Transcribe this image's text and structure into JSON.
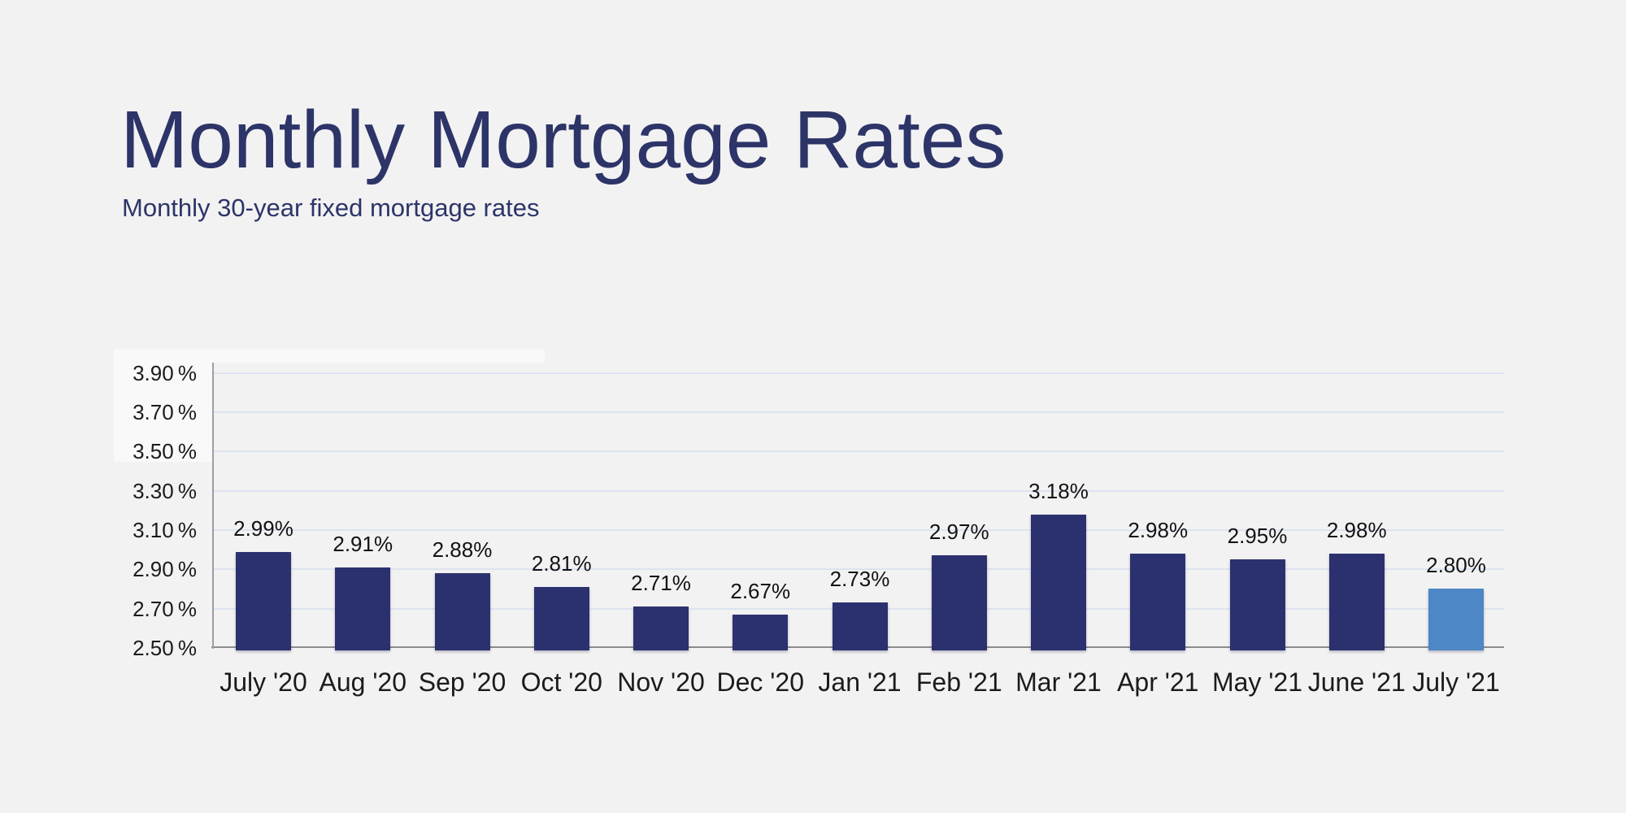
{
  "page": {
    "background": "#f2f2f3"
  },
  "header": {
    "title": "Monthly Mortgage Rates",
    "subtitle": "Monthly 30-year fixed mortgage rates"
  },
  "chart_data": {
    "type": "bar",
    "title": "Monthly Mortgage Rates",
    "subtitle": "Monthly 30-year fixed mortgage rates",
    "categories": [
      "July '20",
      "Aug '20",
      "Sep '20",
      "Oct '20",
      "Nov '20",
      "Dec '20",
      "Jan '21",
      "Feb '21",
      "Mar '21",
      "Apr '21",
      "May '21",
      "June '21",
      "July '21"
    ],
    "values": [
      2.99,
      2.91,
      2.88,
      2.81,
      2.71,
      2.67,
      2.73,
      2.97,
      3.18,
      2.98,
      2.95,
      2.98,
      2.8
    ],
    "value_labels": [
      "2.99%",
      "2.91%",
      "2.88%",
      "2.81%",
      "2.71%",
      "2.67%",
      "2.73%",
      "2.97%",
      "3.18%",
      "2.98%",
      "2.95%",
      "2.98%",
      "2.80%"
    ],
    "y_ticks": [
      {
        "label": "3.90 %",
        "value": 3.9
      },
      {
        "label": "3.70 %",
        "value": 3.7
      },
      {
        "label": "3.50 %",
        "value": 3.5
      },
      {
        "label": "3.30 %",
        "value": 3.3
      },
      {
        "label": "3.10 %",
        "value": 3.1
      },
      {
        "label": "2.90 %",
        "value": 2.9
      },
      {
        "label": "2.70 %",
        "value": 2.7
      },
      {
        "label": "2.50 %",
        "value": 2.5
      }
    ],
    "ylim": [
      2.5,
      3.9
    ],
    "xlabel": "",
    "ylabel": "",
    "grid": "horizontal",
    "legend": "none",
    "unit": "percent",
    "highlight_index": 12,
    "colors": {
      "bar_default": "#2b316e",
      "bar_highlight": "#4d87c5",
      "gridline": "#dce3f0",
      "axis": "#8c8c8c",
      "tick_text": "#1b1b1b",
      "title_text": "#2d3468"
    }
  }
}
